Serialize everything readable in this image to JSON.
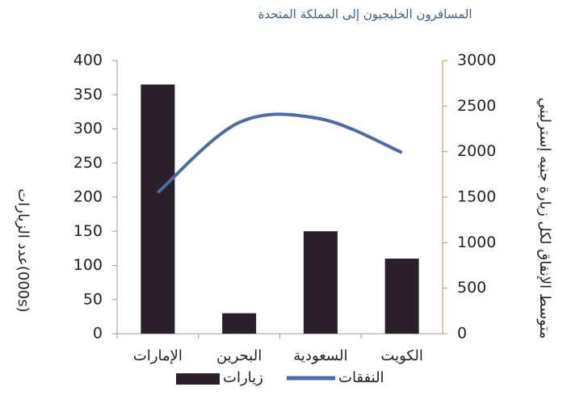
{
  "chart_data": {
    "type": "bar-line",
    "title": "المسافرون الخليجيون إلى المملكة المتحدة",
    "y_label": "عدد الزيارات(000s)",
    "y2_label": "متوسط الإنفاق لكل زيارة جنيه إسترليني",
    "categories": [
      "الإمارات",
      "البحرين",
      "السعودية",
      "الكويت"
    ],
    "series": [
      {
        "name": "زيارات",
        "type": "bar",
        "color": "#2b1f2c",
        "values": [
          365,
          30,
          150,
          110
        ]
      },
      {
        "name": "النفقات",
        "type": "line",
        "axis": "y2",
        "color": "#4a6aa8",
        "values": [
          1550,
          2320,
          2360,
          1990
        ]
      }
    ],
    "ylim": [
      0,
      400
    ],
    "yticks": [
      0,
      50,
      100,
      150,
      200,
      250,
      300,
      350,
      400
    ],
    "y2lim": [
      0,
      3000
    ],
    "y2ticks": [
      0,
      500,
      1000,
      1500,
      2000,
      2500,
      3000
    ]
  }
}
